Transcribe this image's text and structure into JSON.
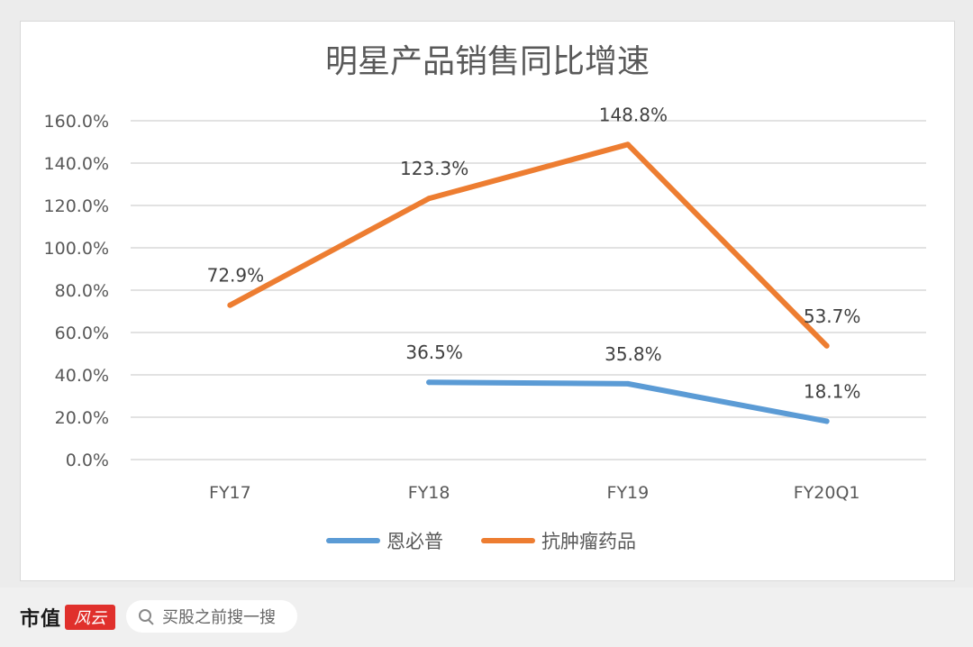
{
  "chart_data": {
    "type": "line",
    "title": "明星产品销售同比增速",
    "categories": [
      "FY17",
      "FY18",
      "FY19",
      "FY20Q1"
    ],
    "ylim": [
      0,
      160
    ],
    "yticks": [
      "0.0%",
      "20.0%",
      "40.0%",
      "60.0%",
      "80.0%",
      "100.0%",
      "120.0%",
      "140.0%",
      "160.0%"
    ],
    "grid": true,
    "legend_position": "bottom",
    "series": [
      {
        "name": "恩必普",
        "color": "#5b9bd5",
        "values": [
          null,
          36.5,
          35.8,
          18.1
        ],
        "labels": [
          null,
          "36.5%",
          "35.8%",
          "18.1%"
        ]
      },
      {
        "name": "抗肿瘤药品",
        "color": "#ed7d31",
        "values": [
          72.9,
          123.3,
          148.8,
          53.7
        ],
        "labels": [
          "72.9%",
          "123.3%",
          "148.8%",
          "53.7%"
        ]
      }
    ]
  },
  "footer": {
    "brand": "市值",
    "brand_logo_text": "风云",
    "search_placeholder": "买股之前搜一搜",
    "search_icon": "search-icon"
  }
}
